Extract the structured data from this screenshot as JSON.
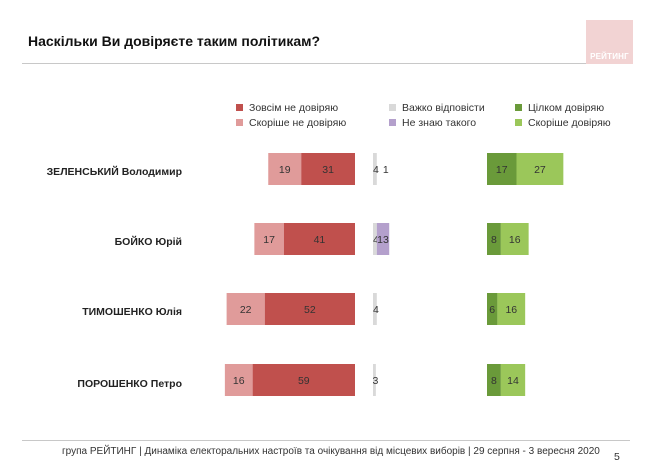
{
  "title": "Наскільки Ви довіряєте таким політикам?",
  "logo_text": "РЕЙТИНГ",
  "footer": "група РЕЙТИНГ | Динаміка електоральних настроїв та очікування від місцевих виборів | 29 серпня - 3 вересня 2020",
  "page_number": "5",
  "colors": {
    "zovsim_ne": "#c0504d",
    "skorishe_ne": "#e09b9a",
    "vazhko": "#d9d9d9",
    "ne_znayu": "#b4a0cc",
    "tsilkom": "#6a9a3a",
    "skorishe_tak": "#9bc75a"
  },
  "legend": [
    {
      "label": "Зовсім не довіряю",
      "color": "#c0504d"
    },
    {
      "label": "Скоріше не довіряю",
      "color": "#e09b9a"
    },
    {
      "label": "Важко відповісти",
      "color": "#d9d9d9"
    },
    {
      "label": "Не знаю такого",
      "color": "#b4a0cc"
    },
    {
      "label": "Цілком довіряю",
      "color": "#6a9a3a"
    },
    {
      "label": "Скоріше довіряю",
      "color": "#9bc75a"
    }
  ],
  "chart_data": {
    "type": "bar",
    "title": "Наскільки Ви довіряєте таким політикам?",
    "categories": [
      "ЗЕЛЕНСЬКИЙ Володимир",
      "БОЙКО Юрій",
      "ТИМОШЕНКО Юлія",
      "ПОРОШЕНКО Петро"
    ],
    "series": [
      {
        "name": "Скоріше не довіряю",
        "values": [
          19,
          17,
          22,
          16
        ]
      },
      {
        "name": "Зовсім не довіряю",
        "values": [
          31,
          41,
          52,
          59
        ]
      },
      {
        "name": "Важко відповісти",
        "values": [
          4,
          4,
          4,
          3
        ]
      },
      {
        "name": "Не знаю такого",
        "values": [
          1,
          13,
          0,
          0
        ]
      },
      {
        "name": "Цілком довіряю",
        "values": [
          17,
          8,
          6,
          8
        ]
      },
      {
        "name": "Скоріше довіряю",
        "values": [
          27,
          16,
          16,
          14
        ]
      }
    ]
  }
}
